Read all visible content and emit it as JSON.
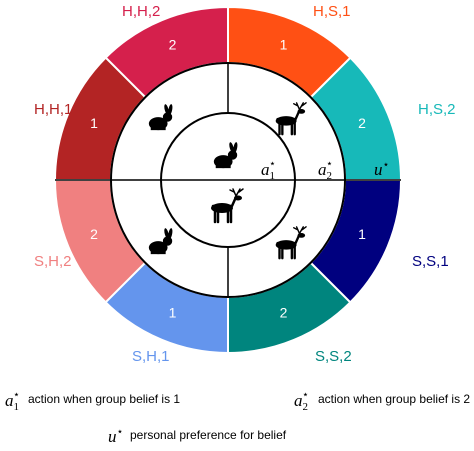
{
  "segments": [
    {
      "label": "H,S,2",
      "number": "2",
      "color": "#17b9b9"
    },
    {
      "label": "H,S,1",
      "number": "1",
      "color": "#ff5014"
    },
    {
      "label": "H,H,2",
      "number": "2",
      "color": "#d5204c"
    },
    {
      "label": "H,H,1",
      "number": "1",
      "color": "#b32424"
    },
    {
      "label": "S,H,2",
      "number": "2",
      "color": "#f08080"
    },
    {
      "label": "S,H,1",
      "number": "1",
      "color": "#6495ed"
    },
    {
      "label": "S,S,2",
      "number": "2",
      "color": "#00857e"
    },
    {
      "label": "S,S,1",
      "number": "1",
      "color": "#00007f"
    }
  ],
  "axis_marks": [
    {
      "symbol": "a",
      "sub": "1",
      "sup": "⋆"
    },
    {
      "symbol": "a",
      "sub": "2",
      "sup": "⋆"
    },
    {
      "symbol": "u",
      "sup": "⋆"
    }
  ],
  "legend": [
    {
      "symbol": "a",
      "sub": "1",
      "sup": "⋆",
      "text": "action when group belief is 1"
    },
    {
      "symbol": "a",
      "sub": "2",
      "sup": "⋆",
      "text": "action when group belief is 2"
    },
    {
      "symbol": "u",
      "sup": "⋆",
      "text": "personal preference for belief"
    }
  ]
}
